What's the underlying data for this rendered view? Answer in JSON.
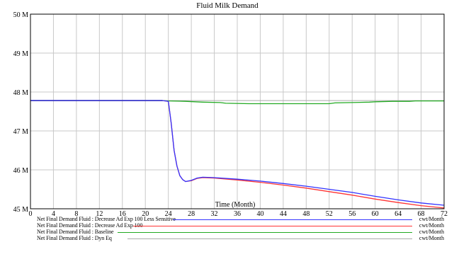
{
  "chart_data": {
    "type": "line",
    "title": "Fluid Milk Demand",
    "xlabel": "Time (Month)",
    "ylabel": "",
    "xlim": [
      0,
      72
    ],
    "ylim": [
      45,
      50
    ],
    "x_ticks": [
      0,
      4,
      8,
      12,
      16,
      20,
      24,
      28,
      32,
      36,
      40,
      44,
      48,
      52,
      56,
      60,
      64,
      68,
      72
    ],
    "y_ticks": [
      {
        "value": 45,
        "label": "45 M"
      },
      {
        "value": 46,
        "label": "46 M"
      },
      {
        "value": 47,
        "label": "47 M"
      },
      {
        "value": 48,
        "label": "48 M"
      },
      {
        "value": 49,
        "label": "49 M"
      },
      {
        "value": 50,
        "label": "50 M"
      }
    ],
    "grid": true,
    "legend_placement": "bottom",
    "series": [
      {
        "name": "Net Final Demand Fluid : Decrease Ad Exp 100 Less Sensitive",
        "unit": "cwt/Month",
        "color": "#3333ff",
        "x": [
          0,
          23,
          24,
          24.5,
          25,
          25.5,
          26,
          26.5,
          27,
          28,
          29,
          30,
          32,
          36,
          40,
          44,
          48,
          52,
          56,
          60,
          64,
          68,
          72
        ],
        "y": [
          47.78,
          47.78,
          47.76,
          47.2,
          46.5,
          46.1,
          45.85,
          45.75,
          45.7,
          45.73,
          45.79,
          45.81,
          45.8,
          45.76,
          45.71,
          45.65,
          45.58,
          45.5,
          45.42,
          45.32,
          45.23,
          45.15,
          45.09
        ]
      },
      {
        "name": "Net Final Demand Fluid : Decrease Ad Exp 100",
        "unit": "cwt/Month",
        "color": "#ff3333",
        "x": [
          0,
          23,
          24,
          24.5,
          25,
          25.5,
          26,
          26.5,
          27,
          28,
          29,
          30,
          32,
          36,
          40,
          44,
          48,
          52,
          56,
          60,
          64,
          68,
          72
        ],
        "y": [
          47.78,
          47.78,
          47.76,
          47.2,
          46.5,
          46.1,
          45.85,
          45.75,
          45.7,
          45.72,
          45.78,
          45.8,
          45.79,
          45.74,
          45.68,
          45.61,
          45.53,
          45.44,
          45.35,
          45.25,
          45.16,
          45.08,
          45.02
        ]
      },
      {
        "name": "Net Final Demand Fluid : Baseline",
        "unit": "cwt/Month",
        "color": "#22aa22",
        "x": [
          0,
          23,
          24,
          27,
          30,
          33,
          34,
          38,
          42,
          46,
          50,
          52,
          53,
          56,
          59,
          60,
          63,
          66,
          67,
          72
        ],
        "y": [
          47.78,
          47.78,
          47.77,
          47.76,
          47.74,
          47.73,
          47.71,
          47.7,
          47.7,
          47.7,
          47.7,
          47.7,
          47.72,
          47.73,
          47.74,
          47.75,
          47.76,
          47.76,
          47.77,
          47.77
        ]
      },
      {
        "name": "Net Final Demand Fluid : Dyn Eq",
        "unit": "cwt/Month",
        "color": "#aaaaaa",
        "x": [
          0,
          72
        ],
        "y": [
          47.78,
          47.78
        ]
      }
    ]
  }
}
